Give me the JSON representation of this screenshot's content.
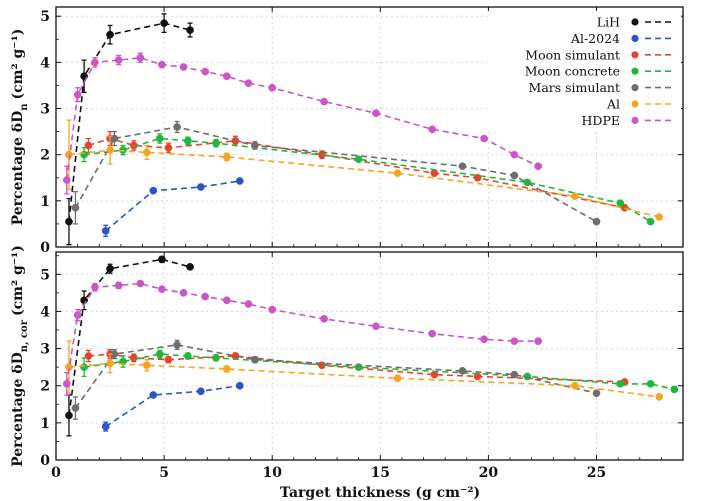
{
  "chart_data": {
    "type": "scatter",
    "xlabel": "Target thickness (g cm⁻²)",
    "xlim": [
      0,
      29
    ],
    "x_ticks": [
      "0",
      "5",
      "10",
      "15",
      "20",
      "25"
    ],
    "x_tick_values": [
      0,
      5,
      10,
      15,
      20,
      25
    ],
    "grid": true,
    "legend_position": "top-right",
    "series_style": [
      {
        "name": "LiH",
        "color": "#111111"
      },
      {
        "name": "Al-2024",
        "color": "#2a56c6"
      },
      {
        "name": "Moon simulant",
        "color": "#e8432d"
      },
      {
        "name": "Moon concrete",
        "color": "#1fb83a"
      },
      {
        "name": "Mars simulant",
        "color": "#6e6e6e"
      },
      {
        "name": "Al",
        "color": "#f5a524"
      },
      {
        "name": "HDPE",
        "color": "#cc55c8"
      }
    ],
    "panels": [
      {
        "ylabel_main": "Percentage δD",
        "ylabel_sub": "n",
        "ylabel_unit": "(cm² g⁻¹)",
        "ylim": [
          0,
          5.2
        ],
        "y_ticks": [
          "0",
          "1",
          "2",
          "3",
          "4",
          "5"
        ],
        "y_tick_values": [
          0,
          1,
          2,
          3,
          4,
          5
        ],
        "series": [
          {
            "name": "LiH",
            "x": [
              0.6,
              1.3,
              2.5,
              5.0,
              6.2
            ],
            "y": [
              0.55,
              3.7,
              4.6,
              4.85,
              4.7
            ],
            "err": [
              0.5,
              0.35,
              0.2,
              0.2,
              0.15
            ]
          },
          {
            "name": "Al-2024",
            "x": [
              2.3,
              4.5,
              6.7,
              8.5
            ],
            "y": [
              0.35,
              1.22,
              1.3,
              1.43
            ],
            "err": [
              0.12,
              0.05,
              0.05,
              0.05
            ]
          },
          {
            "name": "Moon simulant",
            "x": [
              1.5,
              2.5,
              3.6,
              5.2,
              8.3,
              12.3,
              17.5,
              19.5,
              26.3
            ],
            "y": [
              2.2,
              2.35,
              2.2,
              2.15,
              2.3,
              2.0,
              1.6,
              1.5,
              0.85
            ],
            "err": [
              0.15,
              0.15,
              0.1,
              0.1,
              0.1,
              0.08,
              0.06,
              0.05,
              0.05
            ]
          },
          {
            "name": "Moon concrete",
            "x": [
              1.3,
              3.1,
              4.8,
              6.1,
              7.4,
              14.0,
              21.8,
              26.1,
              27.5
            ],
            "y": [
              2.0,
              2.1,
              2.35,
              2.3,
              2.25,
              1.9,
              1.4,
              0.95,
              0.55
            ],
            "err": [
              0.15,
              0.1,
              0.1,
              0.08,
              0.08,
              0.06,
              0.05,
              0.05,
              0.05
            ]
          },
          {
            "name": "Mars simulant",
            "x": [
              0.9,
              2.7,
              5.6,
              9.2,
              18.8,
              21.2,
              25.0
            ],
            "y": [
              0.85,
              2.35,
              2.6,
              2.2,
              1.75,
              1.55,
              0.55
            ],
            "err": [
              0.35,
              0.15,
              0.12,
              0.08,
              0.06,
              0.05,
              0.05
            ]
          },
          {
            "name": "Al",
            "x": [
              0.6,
              2.5,
              4.2,
              7.9,
              15.8,
              24.0,
              27.9
            ],
            "y": [
              2.0,
              2.1,
              2.05,
              1.95,
              1.6,
              1.1,
              0.65
            ],
            "err": [
              0.75,
              0.3,
              0.15,
              0.08,
              0.06,
              0.05,
              0.05
            ]
          },
          {
            "name": "HDPE",
            "x": [
              0.5,
              1.0,
              1.8,
              2.9,
              3.9,
              4.9,
              5.9,
              6.9,
              7.9,
              8.9,
              10.0,
              12.4,
              14.8,
              17.4,
              19.8,
              21.2,
              22.3
            ],
            "y": [
              1.45,
              3.3,
              4.0,
              4.05,
              4.1,
              3.95,
              3.9,
              3.8,
              3.7,
              3.55,
              3.45,
              3.15,
              2.9,
              2.55,
              2.35,
              2.0,
              1.75
            ],
            "err": [
              0.3,
              0.15,
              0.1,
              0.1,
              0.1,
              0.05,
              0.05,
              0.05,
              0.05,
              0.05,
              0.05,
              0.05,
              0.05,
              0.05,
              0.05,
              0.05,
              0.05
            ]
          }
        ]
      },
      {
        "ylabel_main": "Percentage δD",
        "ylabel_sub": "n, cor",
        "ylabel_unit": "(cm² g⁻¹)",
        "ylim": [
          0,
          5.6
        ],
        "y_ticks": [
          "0",
          "1",
          "2",
          "3",
          "4",
          "5"
        ],
        "y_tick_values": [
          0,
          1,
          2,
          3,
          4,
          5
        ],
        "series": [
          {
            "name": "LiH",
            "x": [
              0.6,
              1.3,
              2.5,
              4.9,
              6.2
            ],
            "y": [
              1.2,
              4.3,
              5.15,
              5.4,
              5.2
            ],
            "err": [
              0.55,
              0.25,
              0.12,
              0.08,
              0.06
            ]
          },
          {
            "name": "Al-2024",
            "x": [
              2.3,
              4.5,
              6.7,
              8.5
            ],
            "y": [
              0.9,
              1.75,
              1.85,
              2.0
            ],
            "err": [
              0.12,
              0.05,
              0.05,
              0.05
            ]
          },
          {
            "name": "Moon simulant",
            "x": [
              1.5,
              2.5,
              3.6,
              5.2,
              8.3,
              12.3,
              17.5,
              19.5,
              26.3
            ],
            "y": [
              2.8,
              2.85,
              2.75,
              2.7,
              2.8,
              2.55,
              2.3,
              2.25,
              2.1
            ],
            "err": [
              0.15,
              0.12,
              0.1,
              0.08,
              0.08,
              0.06,
              0.05,
              0.05,
              0.05
            ]
          },
          {
            "name": "Moon concrete",
            "x": [
              1.3,
              3.1,
              4.8,
              6.1,
              7.4,
              14.0,
              21.8,
              26.1,
              27.5,
              28.6
            ],
            "y": [
              2.5,
              2.65,
              2.85,
              2.8,
              2.75,
              2.5,
              2.25,
              2.05,
              2.05,
              1.9
            ],
            "err": [
              0.25,
              0.15,
              0.1,
              0.08,
              0.08,
              0.05,
              0.05,
              0.05,
              0.05,
              0.05
            ]
          },
          {
            "name": "Mars simulant",
            "x": [
              0.9,
              2.7,
              5.6,
              9.2,
              18.8,
              21.2,
              25.0
            ],
            "y": [
              1.4,
              2.85,
              3.1,
              2.7,
              2.4,
              2.3,
              1.8
            ],
            "err": [
              0.3,
              0.12,
              0.12,
              0.08,
              0.06,
              0.05,
              0.05
            ]
          },
          {
            "name": "Al",
            "x": [
              0.6,
              2.5,
              4.2,
              7.9,
              15.8,
              24.0,
              27.9
            ],
            "y": [
              2.5,
              2.6,
              2.55,
              2.45,
              2.2,
              2.0,
              1.7
            ],
            "err": [
              0.7,
              0.25,
              0.15,
              0.08,
              0.06,
              0.05,
              0.05
            ]
          },
          {
            "name": "HDPE",
            "x": [
              0.5,
              1.0,
              1.8,
              2.9,
              3.9,
              4.9,
              5.9,
              6.9,
              7.9,
              8.9,
              10.0,
              12.4,
              14.8,
              17.4,
              19.8,
              21.2,
              22.3
            ],
            "y": [
              2.05,
              3.9,
              4.65,
              4.7,
              4.75,
              4.6,
              4.5,
              4.4,
              4.3,
              4.2,
              4.05,
              3.8,
              3.6,
              3.4,
              3.25,
              3.2,
              3.2
            ],
            "err": [
              0.3,
              0.15,
              0.1,
              0.08,
              0.06,
              0.05,
              0.05,
              0.05,
              0.05,
              0.05,
              0.05,
              0.05,
              0.05,
              0.05,
              0.05,
              0.05,
              0.05
            ]
          }
        ]
      }
    ]
  }
}
